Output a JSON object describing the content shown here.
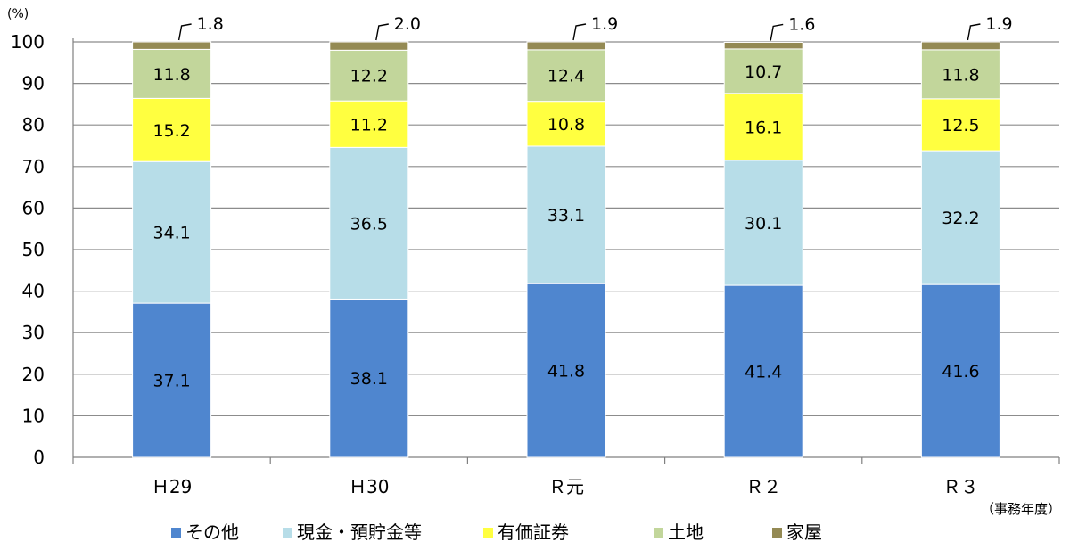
{
  "chart_data": {
    "type": "bar",
    "stacked": true,
    "y_unit_label": "(%)",
    "x_unit_label": "（事務年度）",
    "ylim": [
      0,
      100
    ],
    "yticks": [
      0,
      10,
      20,
      30,
      40,
      50,
      60,
      70,
      80,
      90,
      100
    ],
    "grid": true,
    "legend_position": "bottom",
    "categories": [
      "Ｈ29",
      "Ｈ30",
      "Ｒ元",
      "Ｒ２",
      "Ｒ３"
    ],
    "series": [
      {
        "name": "その他",
        "color": "#4f86cf",
        "values": [
          37.1,
          38.1,
          41.8,
          41.4,
          41.6
        ],
        "labels": [
          "37.1",
          "38.1",
          "41.8",
          "41.4",
          "41.6"
        ]
      },
      {
        "name": "現金・預貯金等",
        "color": "#b7dde8",
        "values": [
          34.1,
          36.5,
          33.1,
          30.1,
          32.2
        ],
        "labels": [
          "34.1",
          "36.5",
          "33.1",
          "30.1",
          "32.2"
        ]
      },
      {
        "name": "有価証券",
        "color": "#ffff40",
        "values": [
          15.2,
          11.2,
          10.8,
          16.1,
          12.5
        ],
        "labels": [
          "15.2",
          "11.2",
          "10.8",
          "16.1",
          "12.5"
        ]
      },
      {
        "name": "土地",
        "color": "#c2d69b",
        "values": [
          11.8,
          12.2,
          12.4,
          10.7,
          11.8
        ],
        "labels": [
          "11.8",
          "12.2",
          "12.4",
          "10.7",
          "11.8"
        ]
      },
      {
        "name": "家屋",
        "color": "#948a54",
        "values": [
          1.8,
          2.0,
          1.9,
          1.6,
          1.9
        ],
        "labels": [
          "1.8",
          "2.0",
          "1.9",
          "1.6",
          "1.9"
        ]
      }
    ]
  }
}
